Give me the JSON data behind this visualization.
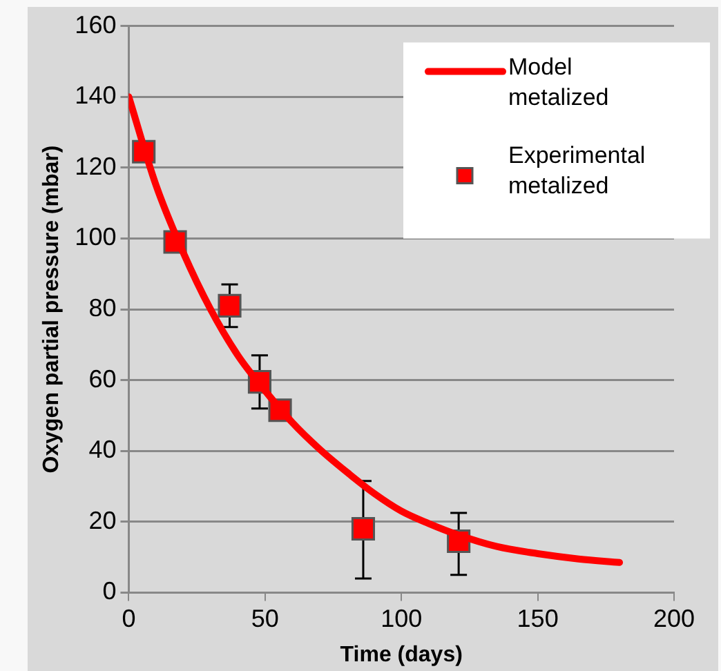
{
  "chart_data": {
    "type": "scatter",
    "xlabel": "Time (days)",
    "ylabel": "Oxygen partial pressure (mbar)",
    "xlim": [
      0,
      200
    ],
    "xticks": [
      0,
      50,
      100,
      150,
      200
    ],
    "ylim": [
      0,
      160
    ],
    "yticks": [
      0,
      20,
      40,
      60,
      80,
      100,
      120,
      140,
      160
    ],
    "grid": "y",
    "legend": "top right",
    "series": [
      {
        "name": "Model metalized",
        "type": "line",
        "color": "#ff0000",
        "marker": "none",
        "line_style": "solid",
        "x": [
          0,
          10,
          20,
          30,
          40,
          50,
          60,
          70,
          80,
          90,
          100,
          110,
          120,
          135,
          150,
          165,
          180
        ],
        "values": [
          140,
          115,
          96,
          80,
          67,
          57,
          48,
          40.5,
          34,
          28,
          23,
          19.5,
          16.5,
          13,
          11,
          9.5,
          8.5
        ]
      },
      {
        "name": "Experimental metalized",
        "type": "scatter",
        "color": "#ff0000",
        "marker": "square",
        "x": [
          5.5,
          17,
          37,
          48,
          55.5,
          86,
          121
        ],
        "values": [
          124.5,
          99,
          81,
          59.5,
          51.5,
          18,
          14.5
        ],
        "errors": [
          null,
          null,
          [
            75,
            87
          ],
          [
            52,
            67
          ],
          null,
          [
            4,
            31.5
          ],
          [
            5,
            22.5
          ]
        ]
      }
    ]
  }
}
